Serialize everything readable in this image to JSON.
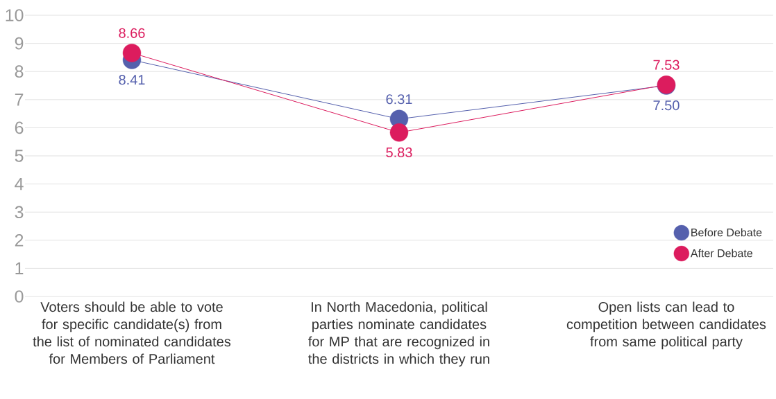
{
  "chart_data": {
    "type": "line",
    "categories": [
      "Voters should be able to vote for specific candidate(s) from the list of nominated candidates for Members of Parliament",
      "In North Macedonia, political parties nominate candidates for MP that are recognized in the districts in which they run",
      "Open lists can lead to competition between candidates from same political party"
    ],
    "series": [
      {
        "name": "Before Debate",
        "color": "#5560ad",
        "values": [
          8.41,
          6.31,
          7.5
        ],
        "value_labels": [
          "8.41",
          "6.31",
          "7.50"
        ]
      },
      {
        "name": "After Debate",
        "color": "#dc1c5e",
        "values": [
          8.66,
          5.83,
          7.53
        ],
        "value_labels": [
          "8.66",
          "5.83",
          "7.53"
        ]
      }
    ],
    "ylim": [
      0,
      10
    ],
    "yticks": [
      0,
      1,
      2,
      3,
      4,
      5,
      6,
      7,
      8,
      9,
      10
    ],
    "grid": "y",
    "legend": "bottom right",
    "marker": "circle",
    "line_style": "solid"
  }
}
